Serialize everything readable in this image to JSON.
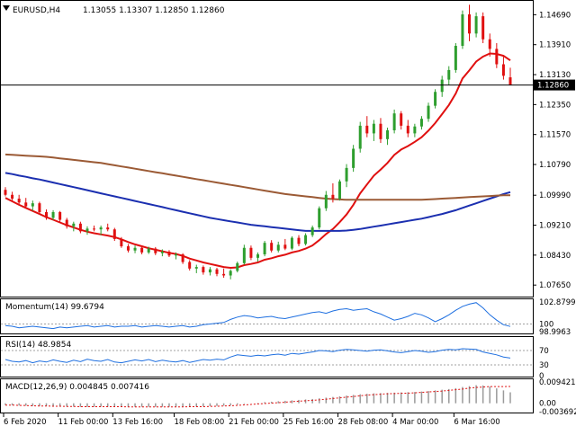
{
  "header": {
    "symbol_label": "EURUSD,H4",
    "ohlc": "1.13055 1.13307 1.12850 1.12860",
    "symbol_icon": "triangle-down-icon"
  },
  "price_axis": {
    "ticks": [
      "1.14690",
      "1.13910",
      "1.13130",
      "1.12350",
      "1.11570",
      "1.10790",
      "1.09990",
      "1.09210",
      "1.08430",
      "1.07650"
    ],
    "current_price": "1.12860"
  },
  "time_axis": {
    "labels": [
      "6 Feb 2020",
      "11 Feb 00:00",
      "13 Feb 16:00",
      "18 Feb 08:00",
      "21 Feb 00:00",
      "25 Feb 16:00",
      "28 Feb 08:00",
      "4 Mar 00:00",
      "6 Mar 16:00"
    ]
  },
  "momentum": {
    "label": "Momentum(14) 99.6794",
    "ticks": [
      "102.8799",
      "100",
      "98.9963"
    ]
  },
  "rsi": {
    "label": "RSI(14) 48.9854",
    "ticks": [
      "70",
      "30",
      "0"
    ]
  },
  "macd": {
    "label": "MACD(12,26,9) 0.004845 0.007416",
    "ticks": [
      "0.009421",
      "0.00",
      "-0.003692"
    ]
  },
  "colors": {
    "bull": "#2e9e2e",
    "bear": "#e01010",
    "ma_fast": "#e01010",
    "ma_mid": "#1b2fb0",
    "ma_slow": "#9b5a35",
    "indicator": "#1e6fe0",
    "macd_signal": "#e01010",
    "grid_dash": "#a0a0a0"
  },
  "chart_data": [
    {
      "type": "candlestick",
      "title": "EURUSD,H4",
      "ylim": [
        1.0735,
        1.1505
      ],
      "x_range": [
        "6 Feb 2020",
        "9 Mar 2020"
      ],
      "ohlc": [
        [
          1.1013,
          1.102,
          1.0996,
          1.1
        ],
        [
          1.1,
          1.1008,
          1.0985,
          1.099
        ],
        [
          1.099,
          1.1,
          1.0976,
          1.098
        ],
        [
          1.098,
          1.0992,
          1.0966,
          1.097
        ],
        [
          1.097,
          1.0985,
          1.0958,
          1.0978
        ],
        [
          1.0978,
          1.0982,
          1.095,
          1.0955
        ],
        [
          1.0955,
          1.0962,
          1.0935,
          1.094
        ],
        [
          1.094,
          1.096,
          1.0934,
          1.0955
        ],
        [
          1.0955,
          1.0958,
          1.093,
          1.0935
        ],
        [
          1.0935,
          1.094,
          1.0912,
          1.0918
        ],
        [
          1.0918,
          1.093,
          1.0905,
          1.0925
        ],
        [
          1.0925,
          1.093,
          1.09,
          1.0905
        ],
        [
          1.0905,
          1.0918,
          1.0896,
          1.0912
        ],
        [
          1.0912,
          1.092,
          1.0905,
          1.091
        ],
        [
          1.091,
          1.092,
          1.0895,
          1.0915
        ],
        [
          1.0915,
          1.0925,
          1.0905,
          1.091
        ],
        [
          1.091,
          1.0914,
          1.088,
          1.0885
        ],
        [
          1.0885,
          1.089,
          1.0862,
          1.0866
        ],
        [
          1.0866,
          1.0872,
          1.085,
          1.0855
        ],
        [
          1.0855,
          1.0868,
          1.0848,
          1.0862
        ],
        [
          1.0862,
          1.0866,
          1.0845,
          1.085
        ],
        [
          1.085,
          1.0865,
          1.0846,
          1.086
        ],
        [
          1.086,
          1.0864,
          1.0843,
          1.0848
        ],
        [
          1.0848,
          1.0858,
          1.084,
          1.0852
        ],
        [
          1.0852,
          1.0856,
          1.0838,
          1.0842
        ],
        [
          1.0842,
          1.085,
          1.0832,
          1.0845
        ],
        [
          1.0845,
          1.0848,
          1.082,
          1.0825
        ],
        [
          1.0825,
          1.083,
          1.0803,
          1.0808
        ],
        [
          1.0808,
          1.0818,
          1.0796,
          1.0812
        ],
        [
          1.0812,
          1.0816,
          1.0792,
          1.0798
        ],
        [
          1.0798,
          1.0812,
          1.079,
          1.0806
        ],
        [
          1.0806,
          1.081,
          1.0788,
          1.0794
        ],
        [
          1.0794,
          1.0808,
          1.0784,
          1.079
        ],
        [
          1.079,
          1.0806,
          1.078,
          1.0802
        ],
        [
          1.0802,
          1.0826,
          1.0798,
          1.0822
        ],
        [
          1.0822,
          1.087,
          1.0818,
          1.0862
        ],
        [
          1.0862,
          1.0868,
          1.083,
          1.0836
        ],
        [
          1.0836,
          1.085,
          1.0826,
          1.0845
        ],
        [
          1.0845,
          1.088,
          1.084,
          1.0875
        ],
        [
          1.0875,
          1.0882,
          1.085,
          1.0855
        ],
        [
          1.0855,
          1.0878,
          1.085,
          1.087
        ],
        [
          1.087,
          1.0885,
          1.0856,
          1.086
        ],
        [
          1.086,
          1.0892,
          1.0856,
          1.0888
        ],
        [
          1.0888,
          1.0895,
          1.0866,
          1.0872
        ],
        [
          1.0872,
          1.09,
          1.0868,
          1.0895
        ],
        [
          1.0895,
          1.092,
          1.089,
          1.0915
        ],
        [
          1.0915,
          1.097,
          1.091,
          1.0965
        ],
        [
          1.0965,
          1.101,
          1.0958,
          1.1
        ],
        [
          1.1,
          1.103,
          1.098,
          1.099
        ],
        [
          1.099,
          1.104,
          1.0985,
          1.1035
        ],
        [
          1.1035,
          1.108,
          1.102,
          1.107
        ],
        [
          1.107,
          1.113,
          1.106,
          1.112
        ],
        [
          1.112,
          1.119,
          1.111,
          1.118
        ],
        [
          1.118,
          1.1205,
          1.115,
          1.116
        ],
        [
          1.116,
          1.1195,
          1.114,
          1.1185
        ],
        [
          1.1185,
          1.12,
          1.1135,
          1.1145
        ],
        [
          1.1145,
          1.1175,
          1.113,
          1.1168
        ],
        [
          1.1168,
          1.1222,
          1.116,
          1.1212
        ],
        [
          1.1212,
          1.1218,
          1.117,
          1.118
        ],
        [
          1.118,
          1.1195,
          1.115,
          1.116
        ],
        [
          1.116,
          1.1185,
          1.115,
          1.1178
        ],
        [
          1.1178,
          1.1205,
          1.117,
          1.1198
        ],
        [
          1.1198,
          1.124,
          1.119,
          1.1232
        ],
        [
          1.1232,
          1.1275,
          1.1225,
          1.1268
        ],
        [
          1.1268,
          1.131,
          1.1255,
          1.13
        ],
        [
          1.13,
          1.1335,
          1.1285,
          1.1325
        ],
        [
          1.1325,
          1.1395,
          1.1318,
          1.1388
        ],
        [
          1.1388,
          1.148,
          1.138,
          1.147
        ],
        [
          1.147,
          1.1495,
          1.14,
          1.142
        ],
        [
          1.142,
          1.1475,
          1.141,
          1.1465
        ],
        [
          1.1465,
          1.1475,
          1.1395,
          1.1405
        ],
        [
          1.1405,
          1.142,
          1.136,
          1.138
        ],
        [
          1.138,
          1.1395,
          1.133,
          1.134
        ],
        [
          1.134,
          1.136,
          1.13,
          1.131
        ],
        [
          1.1306,
          1.1331,
          1.1285,
          1.1286
        ]
      ],
      "series": [
        {
          "name": "",
          "values": [
            1.0992,
            1.0983,
            1.0974,
            1.0966,
            1.0958,
            1.095,
            1.0942,
            1.0935,
            1.0928,
            1.0921,
            1.0915,
            1.0909,
            1.0904,
            1.09,
            1.0897,
            1.0894,
            1.089,
            1.0884,
            1.0877,
            1.0871,
            1.0866,
            1.0861,
            1.0857,
            1.0853,
            1.0849,
            1.0846,
            1.0841,
            1.0834,
            1.0829,
            1.0824,
            1.082,
            1.0816,
            1.0812,
            1.081,
            1.0811,
            1.0817,
            1.082,
            1.0824,
            1.0831,
            1.0835,
            1.084,
            1.0844,
            1.085,
            1.0854,
            1.086,
            1.0868,
            1.0882,
            1.0898,
            1.0911,
            1.0929,
            1.0949,
            1.0974,
            1.1004,
            1.1027,
            1.105,
            1.1066,
            1.1083,
            1.1104,
            1.1118,
            1.1127,
            1.1138,
            1.115,
            1.1167,
            1.1187,
            1.121,
            1.1234,
            1.1264,
            1.1303,
            1.1324,
            1.1347,
            1.136,
            1.1368,
            1.1367,
            1.1362,
            1.135
          ]
        },
        {
          "name": "",
          "values": [
            1.1057,
            1.1054,
            1.105,
            1.1047,
            1.1043,
            1.104,
            1.1036,
            1.1032,
            1.1028,
            1.1024,
            1.102,
            1.1016,
            1.1012,
            1.1008,
            1.1004,
            1.1,
            1.0996,
            1.0992,
            1.0988,
            1.0984,
            1.098,
            1.0976,
            1.0972,
            1.0968,
            1.0964,
            1.096,
            1.0956,
            1.0952,
            1.0948,
            1.0944,
            1.094,
            1.0937,
            1.0934,
            1.0931,
            1.0928,
            1.0925,
            1.0922,
            1.092,
            1.0918,
            1.0916,
            1.0914,
            1.0912,
            1.091,
            1.0908,
            1.0906,
            1.0906,
            1.0906,
            1.0906,
            1.0906,
            1.0906,
            1.0907,
            1.0909,
            1.0911,
            1.0914,
            1.0917,
            1.092,
            1.0923,
            1.0926,
            1.0929,
            1.0932,
            1.0935,
            1.0938,
            1.0942,
            1.0946,
            1.095,
            1.0955,
            1.096,
            1.0966,
            1.0972,
            1.0978,
            1.0984,
            1.099,
            1.0996,
            1.1002,
            1.1007
          ]
        },
        {
          "name": "",
          "values": [
            1.1105,
            1.1104,
            1.1103,
            1.1102,
            1.1101,
            1.11,
            1.1099,
            1.1097,
            1.1095,
            1.1093,
            1.1091,
            1.1089,
            1.1087,
            1.1085,
            1.1083,
            1.108,
            1.1077,
            1.1074,
            1.1071,
            1.1068,
            1.1065,
            1.1062,
            1.1059,
            1.1056,
            1.1053,
            1.105,
            1.1047,
            1.1044,
            1.1041,
            1.1038,
            1.1035,
            1.1032,
            1.1029,
            1.1026,
            1.1023,
            1.102,
            1.1017,
            1.1014,
            1.1011,
            1.1008,
            1.1005,
            1.1002,
            1.1,
            1.0998,
            1.0996,
            1.0994,
            1.0992,
            1.099,
            1.0989,
            1.0988,
            1.0987,
            1.0987,
            1.0987,
            1.0987,
            1.0987,
            1.0987,
            1.0987,
            1.0987,
            1.0987,
            1.0987,
            1.0987,
            1.0987,
            1.0988,
            1.0989,
            1.099,
            1.0991,
            1.0992,
            1.0993,
            1.0994,
            1.0995,
            1.0996,
            1.0997,
            1.0998,
            1.0999,
            1.0999
          ]
        }
      ]
    },
    {
      "type": "line",
      "title": "Momentum(14) 99.6794",
      "ylim": [
        98.9963,
        102.8799
      ],
      "series": [
        {
          "name": "",
          "values": [
            99.8,
            99.7,
            99.5,
            99.6,
            99.7,
            99.6,
            99.5,
            99.4,
            99.6,
            99.5,
            99.6,
            99.7,
            99.8,
            99.6,
            99.7,
            99.8,
            99.6,
            99.7,
            99.7,
            99.8,
            99.6,
            99.7,
            99.8,
            99.7,
            99.6,
            99.7,
            99.8,
            99.6,
            99.7,
            99.9,
            100.0,
            100.1,
            100.2,
            100.6,
            100.9,
            101.1,
            101.0,
            100.8,
            100.9,
            101.0,
            100.8,
            100.7,
            100.9,
            101.1,
            101.3,
            101.5,
            101.6,
            101.4,
            101.7,
            101.9,
            102.0,
            101.8,
            101.9,
            102.0,
            101.6,
            101.3,
            100.9,
            100.5,
            100.7,
            101.0,
            101.4,
            101.2,
            100.8,
            100.3,
            100.7,
            101.2,
            101.8,
            102.3,
            102.6,
            102.8,
            102.1,
            101.2,
            100.5,
            99.9,
            99.6794
          ]
        }
      ]
    },
    {
      "type": "line",
      "title": "RSI(14) 48.9854",
      "ylim": [
        0,
        100
      ],
      "series": [
        {
          "name": "",
          "values": [
            45,
            40,
            38,
            42,
            36,
            41,
            38,
            44,
            40,
            37,
            43,
            39,
            46,
            42,
            40,
            45,
            38,
            36,
            40,
            44,
            41,
            45,
            39,
            43,
            40,
            38,
            42,
            37,
            41,
            45,
            43,
            46,
            44,
            52,
            58,
            56,
            54,
            57,
            55,
            58,
            60,
            57,
            62,
            60,
            63,
            66,
            70,
            69,
            67,
            71,
            73,
            72,
            70,
            68,
            71,
            72,
            69,
            66,
            64,
            67,
            70,
            68,
            65,
            67,
            71,
            73,
            72,
            75,
            74,
            73,
            66,
            62,
            58,
            52,
            48.9854
          ]
        }
      ]
    },
    {
      "type": "bar",
      "title": "MACD(12,26,9) 0.004845 0.007416",
      "ylim": [
        -0.003692,
        0.009421
      ],
      "series": [
        {
          "name": "",
          "values": [
            -0.0008,
            -0.0009,
            -0.001,
            -0.0011,
            -0.0012,
            -0.0013,
            -0.0013,
            -0.0014,
            -0.0014,
            -0.0015,
            -0.0015,
            -0.0016,
            -0.0016,
            -0.0016,
            -0.0015,
            -0.0015,
            -0.0015,
            -0.0016,
            -0.0016,
            -0.0016,
            -0.0016,
            -0.0016,
            -0.0016,
            -0.0016,
            -0.0016,
            -0.0015,
            -0.0015,
            -0.0015,
            -0.0015,
            -0.0014,
            -0.0013,
            -0.0012,
            -0.0011,
            -0.0009,
            -0.0006,
            -0.0003,
            0.0,
            0.0002,
            0.0005,
            0.0007,
            0.0009,
            0.0011,
            0.0013,
            0.0015,
            0.0017,
            0.0019,
            0.0022,
            0.0025,
            0.0028,
            0.0031,
            0.0034,
            0.0037,
            0.004,
            0.0042,
            0.0044,
            0.0045,
            0.0046,
            0.0047,
            0.0048,
            0.0049,
            0.005,
            0.0052,
            0.0054,
            0.0057,
            0.006,
            0.0063,
            0.0067,
            0.0072,
            0.0076,
            0.008,
            0.0079,
            0.0074,
            0.0066,
            0.0057,
            0.004845
          ]
        },
        {
          "name": "",
          "values": [
            -0.0008,
            -0.0008,
            -0.0009,
            -0.001,
            -0.0011,
            -0.0012,
            -0.0012,
            -0.0013,
            -0.0013,
            -0.0014,
            -0.0014,
            -0.0015,
            -0.0015,
            -0.0015,
            -0.0015,
            -0.0015,
            -0.0015,
            -0.0015,
            -0.0016,
            -0.0016,
            -0.0016,
            -0.0016,
            -0.0016,
            -0.0016,
            -0.0016,
            -0.0016,
            -0.0016,
            -0.0015,
            -0.0015,
            -0.0015,
            -0.0014,
            -0.0013,
            -0.0012,
            -0.0011,
            -0.0009,
            -0.0007,
            -0.0005,
            -0.0003,
            -0.0001,
            0.0001,
            0.0003,
            0.0005,
            0.0007,
            0.0009,
            0.0011,
            0.0013,
            0.0015,
            0.0018,
            0.0021,
            0.0024,
            0.0027,
            0.003,
            0.0033,
            0.0036,
            0.0038,
            0.004,
            0.0042,
            0.0043,
            0.0044,
            0.0045,
            0.0046,
            0.0048,
            0.005,
            0.0052,
            0.0054,
            0.0057,
            0.006,
            0.0063,
            0.0067,
            0.007,
            0.0072,
            0.0074,
            0.0074,
            0.0074,
            0.007416
          ]
        }
      ]
    }
  ]
}
